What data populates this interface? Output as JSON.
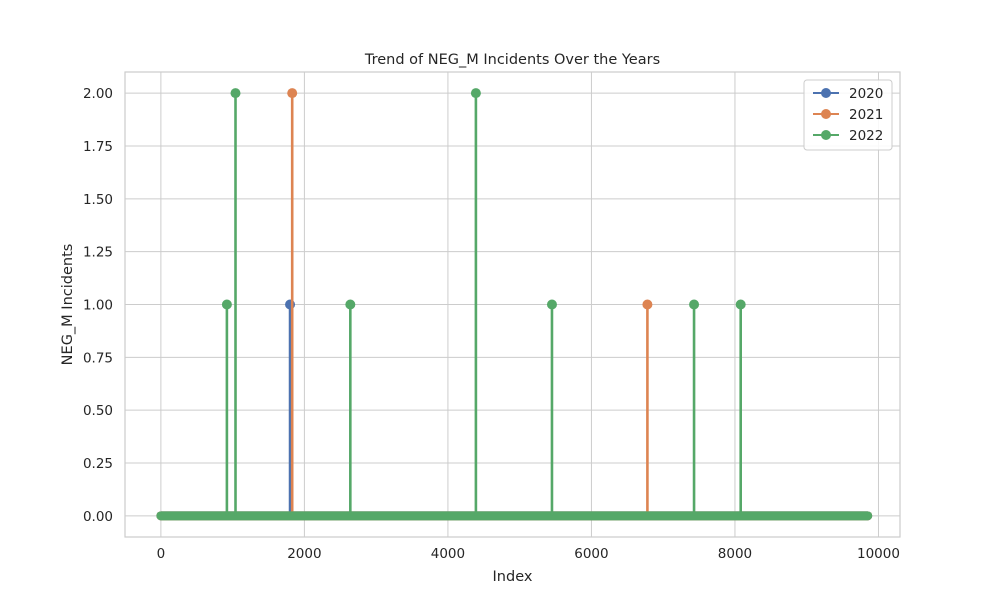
{
  "chart_data": {
    "type": "line",
    "title": "Trend of NEG_M Incidents Over the Years",
    "xlabel": "Index",
    "ylabel": "NEG_M Incidents",
    "xlim": [
      -500,
      10300
    ],
    "ylim": [
      -0.1,
      2.1
    ],
    "xticks": [
      0,
      2000,
      4000,
      6000,
      8000,
      10000
    ],
    "xtick_labels": [
      "0",
      "2000",
      "4000",
      "6000",
      "8000",
      "10000"
    ],
    "yticks": [
      0,
      0.25,
      0.5,
      0.75,
      1.0,
      1.25,
      1.5,
      1.75,
      2.0
    ],
    "ytick_labels": [
      "0.00",
      "0.25",
      "0.50",
      "0.75",
      "1.00",
      "1.25",
      "1.50",
      "1.75",
      "2.00"
    ],
    "grid": true,
    "legend_position": "top-right",
    "baseline": {
      "x_start": 0,
      "x_end": 9850,
      "value": 0
    },
    "series": [
      {
        "name": "2020",
        "color": "#4c72b0",
        "spikes": [
          {
            "x": 1800,
            "y": 1
          }
        ]
      },
      {
        "name": "2021",
        "color": "#dd8452",
        "spikes": [
          {
            "x": 1830,
            "y": 2
          },
          {
            "x": 6780,
            "y": 1
          }
        ]
      },
      {
        "name": "2022",
        "color": "#55a868",
        "spikes": [
          {
            "x": 920,
            "y": 1
          },
          {
            "x": 1040,
            "y": 2
          },
          {
            "x": 2640,
            "y": 1
          },
          {
            "x": 4390,
            "y": 2
          },
          {
            "x": 5450,
            "y": 1
          },
          {
            "x": 7430,
            "y": 1
          },
          {
            "x": 8080,
            "y": 1
          }
        ]
      }
    ]
  }
}
